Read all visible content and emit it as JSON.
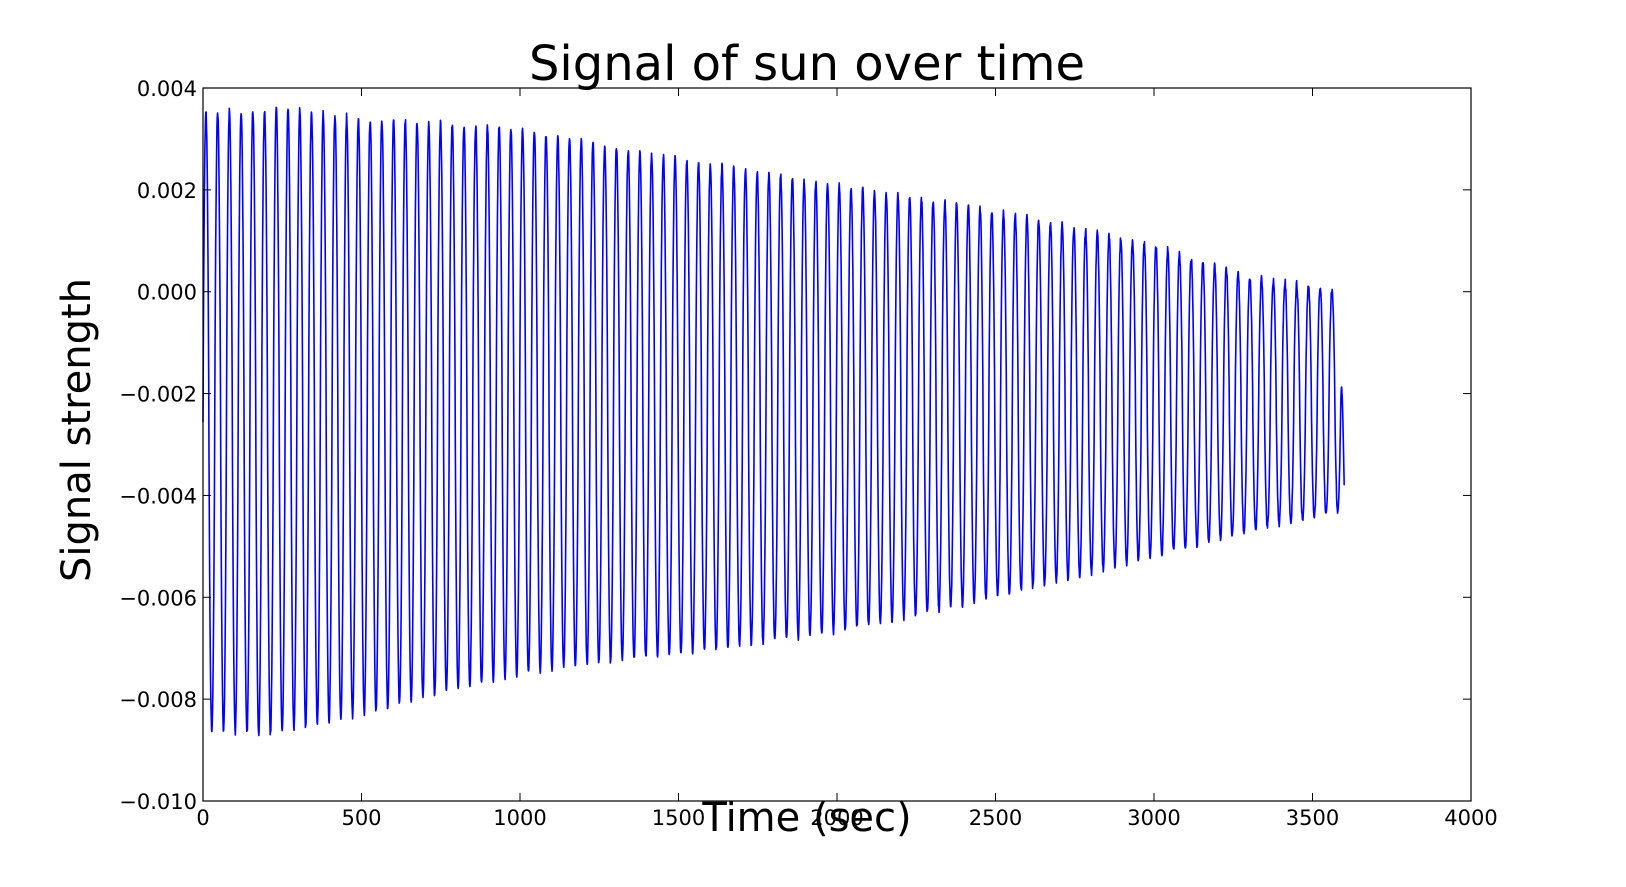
{
  "chart_data": {
    "type": "line",
    "title": "Signal of sun over time",
    "xlabel": "Time (sec)",
    "ylabel": "Signal strength",
    "xlim": [
      0,
      4000
    ],
    "ylim": [
      -0.01,
      0.004
    ],
    "x_ticks": [
      0,
      500,
      1000,
      1500,
      2000,
      2500,
      3000,
      3500,
      4000
    ],
    "x_tick_labels": [
      "0",
      "500",
      "1000",
      "1500",
      "2000",
      "2500",
      "3000",
      "3500",
      "4000"
    ],
    "y_ticks": [
      0.004,
      0.002,
      0.0,
      -0.002,
      -0.004,
      -0.006,
      -0.008,
      -0.01
    ],
    "y_tick_labels": [
      "0.004",
      "0.002",
      "0.000",
      "−0.002",
      "−0.004",
      "−0.006",
      "−0.008",
      "−0.010"
    ],
    "grid": false,
    "legend": "none",
    "line_color": "#0000ff",
    "series": [
      {
        "period_sec": 37,
        "x_start": 0,
        "x_end": 3600,
        "peak_envelope": [
          {
            "x": 0,
            "y": 0.0035
          },
          {
            "x": 250,
            "y": 0.0036
          },
          {
            "x": 500,
            "y": 0.0034
          },
          {
            "x": 1000,
            "y": 0.0032
          },
          {
            "x": 1500,
            "y": 0.0026
          },
          {
            "x": 2000,
            "y": 0.0021
          },
          {
            "x": 2500,
            "y": 0.0016
          },
          {
            "x": 3000,
            "y": 0.0009
          },
          {
            "x": 3300,
            "y": 0.0003
          },
          {
            "x": 3600,
            "y": 0.0
          }
        ],
        "trough_envelope": [
          {
            "x": 0,
            "y": -0.0086
          },
          {
            "x": 200,
            "y": -0.0087
          },
          {
            "x": 500,
            "y": -0.0083
          },
          {
            "x": 1000,
            "y": -0.0075
          },
          {
            "x": 1500,
            "y": -0.0071
          },
          {
            "x": 2000,
            "y": -0.0067
          },
          {
            "x": 2500,
            "y": -0.006
          },
          {
            "x": 3000,
            "y": -0.0052
          },
          {
            "x": 3300,
            "y": -0.0047
          },
          {
            "x": 3600,
            "y": -0.0043
          }
        ],
        "end_y": -0.0038
      }
    ]
  }
}
